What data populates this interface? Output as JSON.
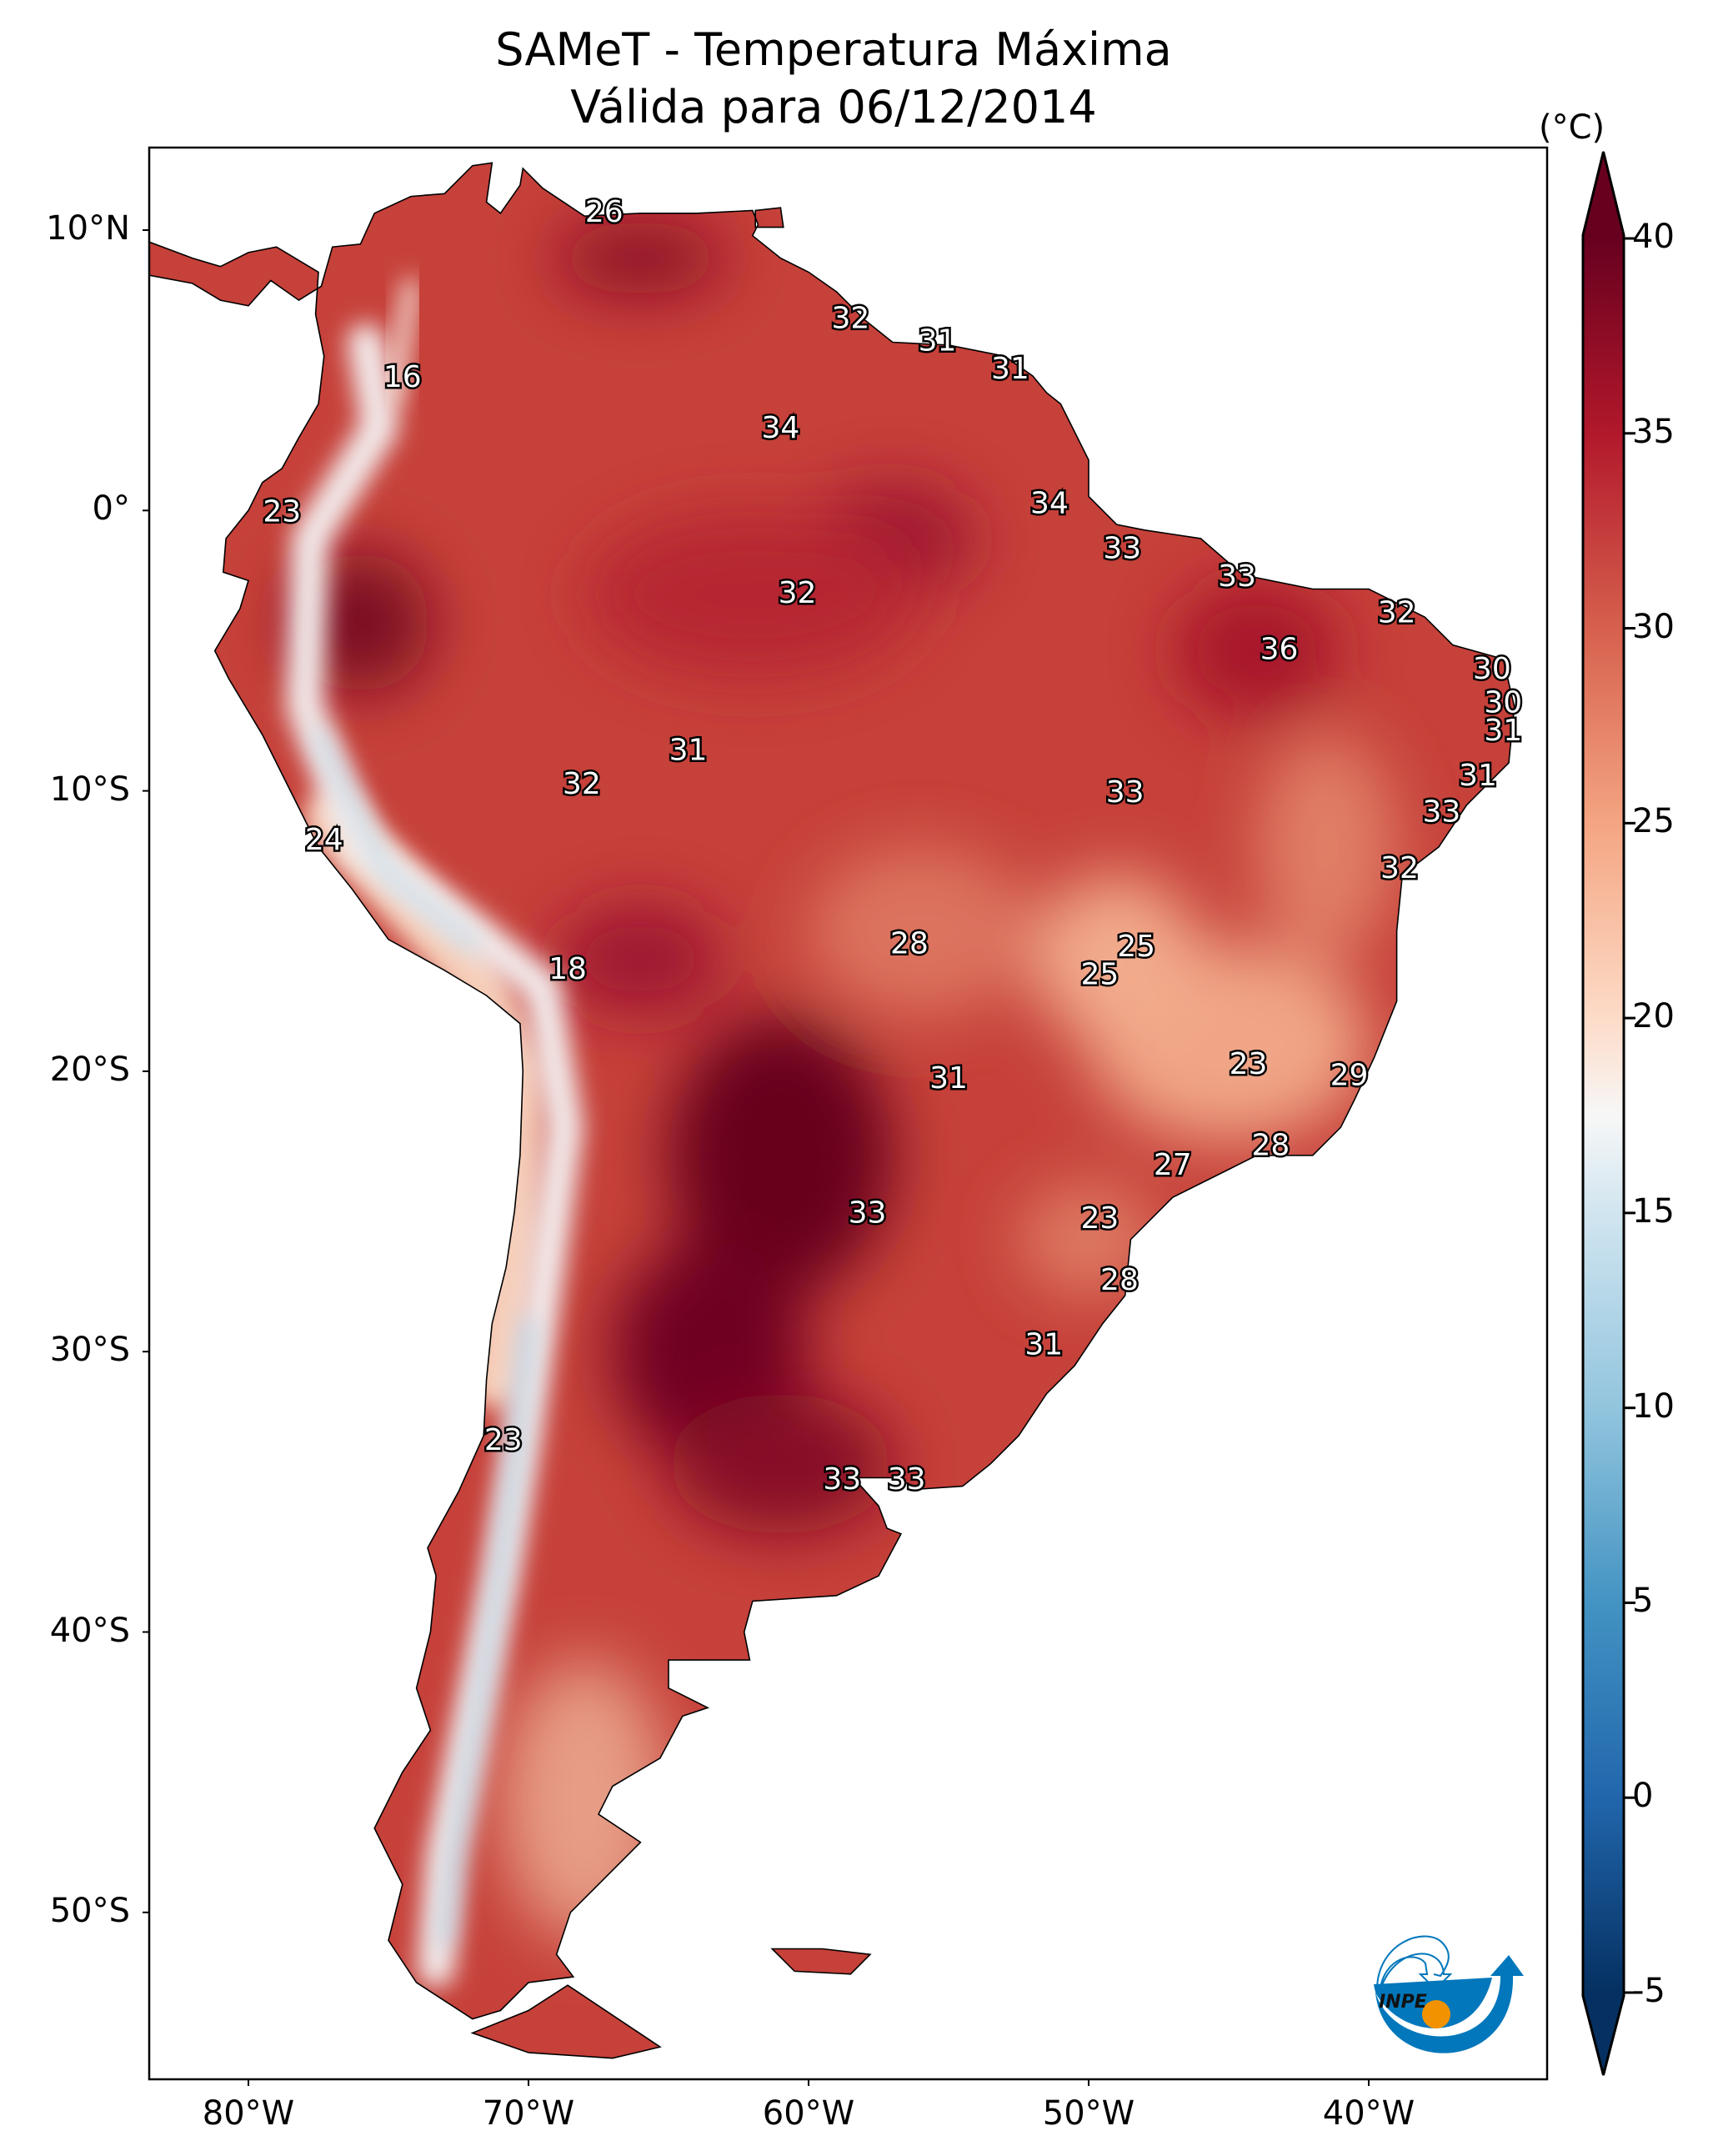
{
  "title": {
    "line1": "SAMeT - Temperatura Máxima",
    "line2": "Válida para 06/12/2014"
  },
  "colorbar": {
    "unit": "(°C)",
    "ticks": [
      "40",
      "35",
      "30",
      "25",
      "20",
      "15",
      "10",
      "5",
      "0",
      "-5"
    ],
    "tick_values": [
      40,
      35,
      30,
      25,
      20,
      15,
      10,
      5,
      0,
      -5
    ],
    "range": [
      -7,
      42
    ],
    "colormap": "RdBu_r",
    "colors": {
      "-5": "#053061",
      "0": "#2166ac",
      "5": "#4393c3",
      "10": "#92c5de",
      "15": "#d1e5f0",
      "17.5": "#f7f7f7",
      "20": "#fddbc7",
      "25": "#f4a582",
      "30": "#d6604d",
      "35": "#b2182b",
      "40": "#67001f"
    }
  },
  "axes": {
    "lat_labels": [
      "10°N",
      "0°",
      "10°S",
      "20°S",
      "30°S",
      "40°S",
      "50°S"
    ],
    "lon_labels": [
      "80°W",
      "70°W",
      "60°W",
      "50°W",
      "40°W"
    ]
  },
  "map_labels": [
    "26",
    "16",
    "32",
    "31",
    "31",
    "34",
    "23",
    "34",
    "33",
    "33",
    "32",
    "32",
    "36",
    "30",
    "30",
    "31",
    "31",
    "31",
    "32",
    "33",
    "33",
    "24",
    "32",
    "28",
    "25",
    "18",
    "25",
    "23",
    "29",
    "31",
    "28",
    "27",
    "33",
    "23",
    "28",
    "31",
    "23",
    "33",
    "33"
  ],
  "logo": {
    "text": "INPE",
    "colors": {
      "blue": "#0277bb",
      "orange": "#f39200"
    }
  }
}
